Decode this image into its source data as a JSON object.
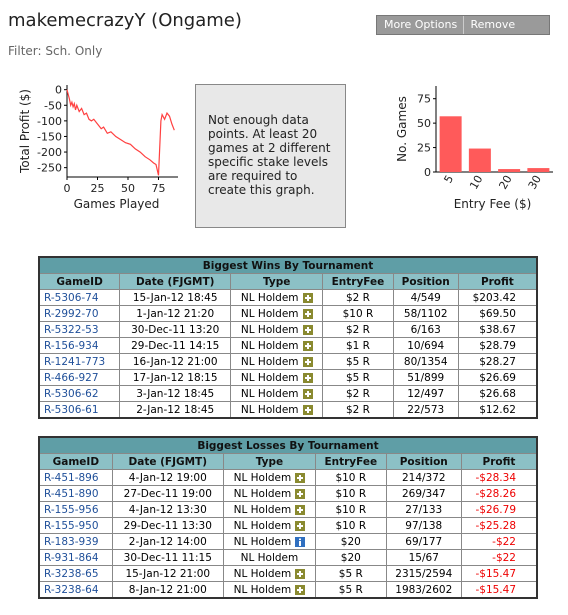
{
  "header": {
    "title": "makemecrazyY (Ongame)",
    "buttons": [
      "More Options",
      "Remove"
    ],
    "filter": "Filter: Sch. Only"
  },
  "chart_data": [
    {
      "type": "line",
      "ylabel": "Total Profit ($)",
      "xlabel": "Games Played",
      "color": "#ff4040",
      "x": [
        0,
        1,
        2,
        3,
        4,
        5,
        6,
        7,
        8,
        10,
        12,
        14,
        16,
        18,
        20,
        22,
        25,
        28,
        30,
        33,
        36,
        40,
        44,
        48,
        52,
        56,
        60,
        64,
        68,
        71,
        73,
        75,
        77,
        78,
        80,
        82,
        84,
        86,
        88
      ],
      "values": [
        0,
        -15,
        -30,
        -50,
        -40,
        -55,
        -45,
        -65,
        -50,
        -70,
        -60,
        -80,
        -75,
        -95,
        -100,
        -95,
        -110,
        -125,
        -120,
        -140,
        -135,
        -150,
        -160,
        -170,
        -175,
        -190,
        -200,
        -215,
        -225,
        -235,
        -240,
        -275,
        -100,
        -80,
        -95,
        -75,
        -85,
        -110,
        -130
      ],
      "xlim": [
        0,
        91
      ],
      "ylim": [
        -280,
        15
      ],
      "xticks": [
        0,
        25,
        50,
        75
      ],
      "yticks": [
        0,
        -50,
        -100,
        -150,
        -200,
        -250
      ]
    },
    {
      "type": "bar",
      "ylabel": "No. Games",
      "xlabel": "Entry Fee ($)",
      "color": "#ff5a5a",
      "categories": [
        "5",
        "10",
        "20",
        "30"
      ],
      "values": [
        57,
        24,
        3,
        4
      ],
      "ylim": [
        0,
        88
      ],
      "yticks": [
        0,
        25,
        50,
        75
      ]
    }
  ],
  "message": "Not enough data points. At least 20 games at 2 different specific stake levels are required to create this graph.",
  "tables": [
    {
      "title": "Biggest Wins By Tournament",
      "columns": [
        "GameID",
        "Date (FJGMT)",
        "Type",
        "EntryFee",
        "Position",
        "Profit"
      ],
      "rows": [
        [
          "R-5306-74",
          "15-Jan-12  18:45",
          "NL Holdem",
          "$2 R",
          "4/549",
          "$203.42"
        ],
        [
          "R-2992-70",
          "1-Jan-12  21:20",
          "NL Holdem",
          "$10 R",
          "58/1102",
          "$69.50"
        ],
        [
          "R-5322-53",
          "30-Dec-11  13:20",
          "NL Holdem",
          "$2 R",
          "6/163",
          "$38.67"
        ],
        [
          "R-156-934",
          "29-Dec-11  14:15",
          "NL Holdem",
          "$1 R",
          "10/694",
          "$28.79"
        ],
        [
          "R-1241-773",
          "16-Jan-12  21:00",
          "NL Holdem",
          "$5 R",
          "80/1354",
          "$28.27"
        ],
        [
          "R-466-927",
          "17-Jan-12  18:15",
          "NL Holdem",
          "$5 R",
          "51/899",
          "$26.69"
        ],
        [
          "R-5306-62",
          "3-Jan-12  18:45",
          "NL Holdem",
          "$2 R",
          "12/497",
          "$26.68"
        ],
        [
          "R-5306-61",
          "2-Jan-12  18:45",
          "NL Holdem",
          "$2 R",
          "22/573",
          "$12.62"
        ]
      ]
    },
    {
      "title": "Biggest Losses By Tournament",
      "columns": [
        "GameID",
        "Date (FJGMT)",
        "Type",
        "EntryFee",
        "Position",
        "Profit"
      ],
      "rows": [
        [
          "R-451-896",
          "4-Jan-12  19:00",
          "NL Holdem",
          "$10 R",
          "214/372",
          "-$28.34"
        ],
        [
          "R-451-890",
          "27-Dec-11  19:00",
          "NL Holdem",
          "$10 R",
          "269/347",
          "-$28.26"
        ],
        [
          "R-155-956",
          "4-Jan-12  13:30",
          "NL Holdem",
          "$10 R",
          "27/133",
          "-$26.79"
        ],
        [
          "R-155-950",
          "29-Dec-11  13:30",
          "NL Holdem",
          "$10 R",
          "97/138",
          "-$25.28"
        ],
        [
          "R-183-939",
          "2-Jan-12  14:00",
          "NL Holdem",
          "$20",
          "69/177",
          "-$22"
        ],
        [
          "R-931-864",
          "30-Dec-11  11:15",
          "NL Holdem",
          "$20",
          "15/67",
          "-$22"
        ],
        [
          "R-3238-65",
          "15-Jan-12  21:00",
          "NL Holdem",
          "$5 R",
          "2315/2594",
          "-$15.47"
        ],
        [
          "R-3238-64",
          "8-Jan-12  21:00",
          "NL Holdem",
          "$5 R",
          "1983/2602",
          "-$15.47"
        ]
      ]
    }
  ]
}
